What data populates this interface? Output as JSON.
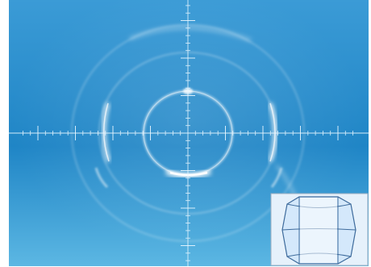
{
  "image": {
    "subject": "diffraction-pattern",
    "colors": {
      "background_top": "#3b9bd6",
      "background_mid": "#1f85c6",
      "background_bottom": "#5cb7e3",
      "ring_glow": "#e9f7ff",
      "crosshair": "#eaf7ff",
      "inset_fill": "#dcecff",
      "inset_outline": "#3e6b9c",
      "inset_border": "#9fb0c2"
    }
  }
}
